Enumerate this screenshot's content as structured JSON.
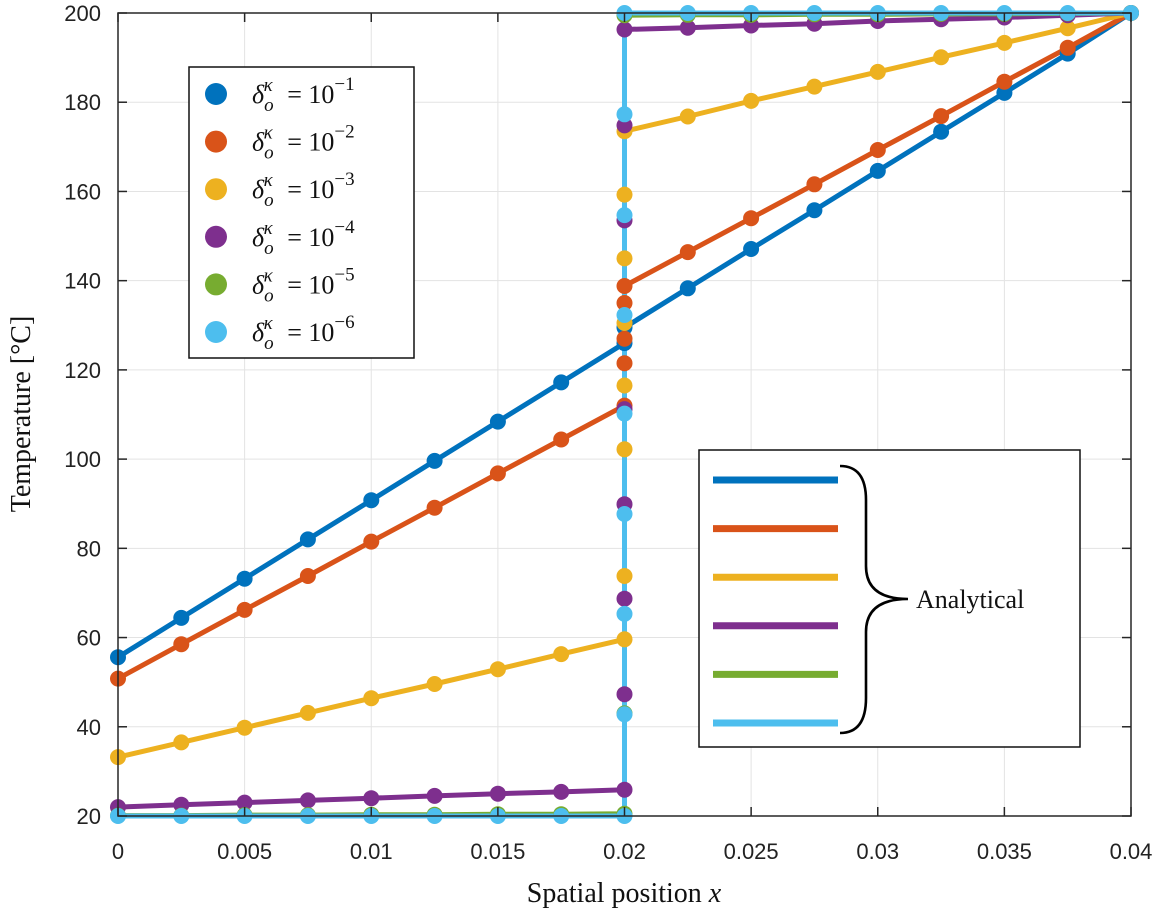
{
  "chart_data": {
    "type": "line",
    "xlabel": "Spatial position",
    "xlabel_var": "x",
    "ylabel": "Temperature",
    "ylabel_unit": "[°C]",
    "xlim": [
      0,
      0.04
    ],
    "ylim": [
      20,
      200
    ],
    "xticks": [
      "0",
      "0.005",
      "0.01",
      "0.015",
      "0.02",
      "0.025",
      "0.03",
      "0.035",
      "0.04"
    ],
    "yticks": [
      "20",
      "40",
      "60",
      "80",
      "100",
      "120",
      "140",
      "160",
      "180",
      "200"
    ],
    "grid": true,
    "legend_position": "top-left",
    "analytical_label": "Analytical",
    "analytical_legend_position": "bottom-right",
    "x_left": [
      0,
      0.0025,
      0.005,
      0.0075,
      0.01,
      0.0125,
      0.015,
      0.0175,
      0.02
    ],
    "x_right": [
      0.02,
      0.0225,
      0.025,
      0.0275,
      0.03,
      0.0325,
      0.035,
      0.0375,
      0.04
    ],
    "series": [
      {
        "name": "δ_o^κ = 10^-1",
        "base": "10",
        "exponent": "−1",
        "color": "#0072BD",
        "left": [
          55.6,
          64.4,
          73.2,
          82.0,
          90.8,
          99.6,
          108.4,
          117.2,
          126.0
        ],
        "right": [
          129.5,
          138.3,
          147.1,
          155.8,
          164.6,
          173.4,
          182.1,
          190.9,
          200.0
        ],
        "interface": []
      },
      {
        "name": "δ_o^κ = 10^-2",
        "base": "10",
        "exponent": "−2",
        "color": "#D95319",
        "left": [
          50.8,
          58.5,
          66.2,
          73.8,
          81.5,
          89.1,
          96.8,
          104.4,
          112.0
        ],
        "right": [
          138.8,
          146.4,
          154.0,
          161.6,
          169.3,
          176.9,
          184.6,
          192.2,
          200.0
        ],
        "interface": [
          121.5,
          127.0,
          135.0
        ]
      },
      {
        "name": "δ_o^κ = 10^-3",
        "base": "10",
        "exponent": "−3",
        "color": "#EDB120",
        "left": [
          33.2,
          36.5,
          39.8,
          43.1,
          46.4,
          49.6,
          52.9,
          56.3,
          59.6
        ],
        "right": [
          173.5,
          176.8,
          180.3,
          183.5,
          186.8,
          190.1,
          193.3,
          196.6,
          200.0
        ],
        "interface": [
          73.8,
          102.2,
          116.5,
          130.5,
          145.0,
          159.3
        ]
      },
      {
        "name": "δ_o^κ = 10^-4",
        "base": "10",
        "exponent": "−4",
        "color": "#7E2F8E",
        "left": [
          22.0,
          22.5,
          23.0,
          23.5,
          24.0,
          24.5,
          25.0,
          25.4,
          25.9
        ],
        "right": [
          196.3,
          196.7,
          197.2,
          197.6,
          198.2,
          198.6,
          199.0,
          199.5,
          200.0
        ],
        "interface": [
          47.3,
          68.7,
          89.9,
          111.2,
          153.5,
          174.8
        ]
      },
      {
        "name": "δ_o^κ = 10^-5",
        "base": "10",
        "exponent": "−5",
        "color": "#77AC30",
        "left": [
          20.1,
          20.1,
          20.2,
          20.2,
          20.3,
          20.3,
          20.4,
          20.4,
          20.5
        ],
        "right": [
          199.5,
          199.6,
          199.6,
          199.7,
          199.7,
          199.8,
          199.8,
          199.9,
          200.0
        ],
        "interface": [
          43.0
        ]
      },
      {
        "name": "δ_o^κ = 10^-6",
        "base": "10",
        "exponent": "−6",
        "color": "#4DBEEE",
        "left": [
          20.0,
          20.0,
          20.0,
          20.0,
          20.0,
          20.0,
          20.0,
          20.0,
          20.0
        ],
        "right": [
          200.0,
          200.0,
          200.0,
          200.0,
          200.0,
          200.0,
          200.0,
          200.0,
          200.0
        ],
        "interface": [
          42.8,
          65.3,
          87.7,
          110.2,
          132.3,
          154.7,
          177.3
        ]
      }
    ]
  }
}
